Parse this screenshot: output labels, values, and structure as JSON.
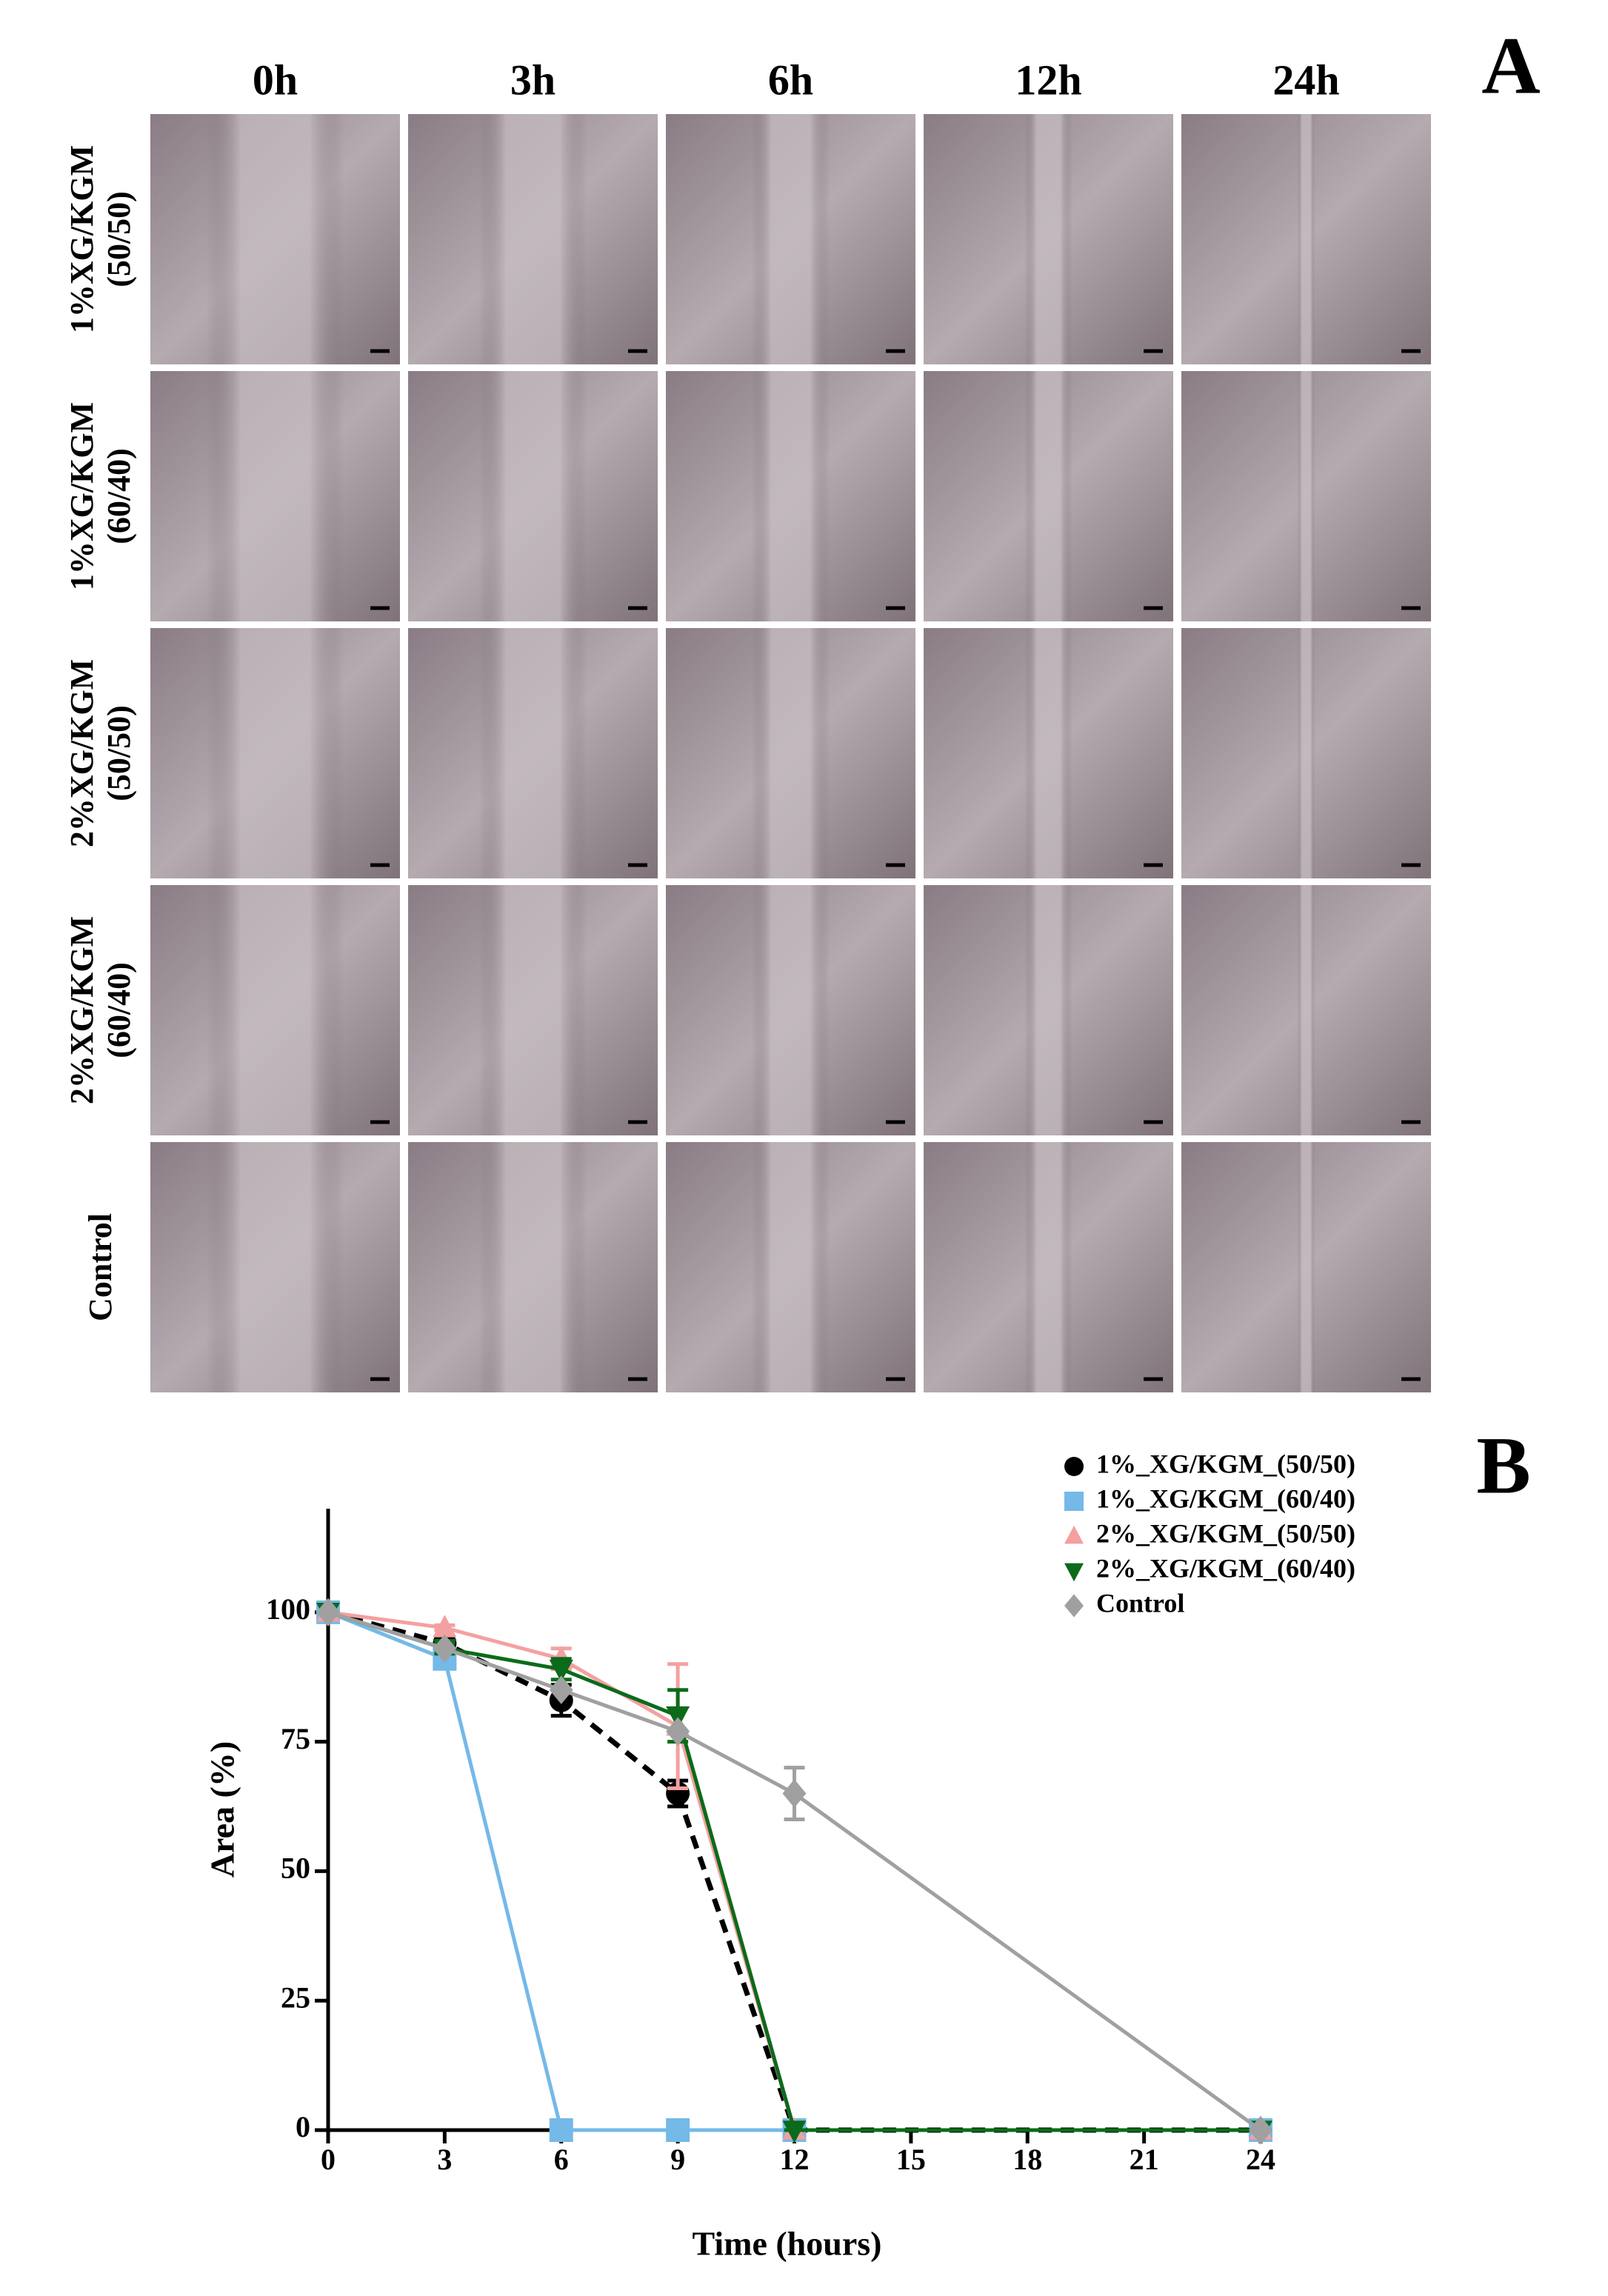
{
  "panel_a": {
    "label": "A",
    "columns": [
      "0h",
      "3h",
      "6h",
      "12h",
      "24h"
    ],
    "rows": [
      [
        "1%XG/KGM",
        "(50/50)"
      ],
      [
        "1%XG/KGM",
        "(60/40)"
      ],
      [
        "2%XG/KGM",
        "(50/50)"
      ],
      [
        "2%XG/KGM",
        "(60/40)"
      ],
      [
        "Control"
      ]
    ]
  },
  "chart_data": {
    "type": "line",
    "panel_label": "B",
    "x_label": "Time (hours)",
    "y_label": "Area (%)",
    "x": [
      0,
      3,
      6,
      9,
      12,
      24
    ],
    "xlim": [
      0,
      24
    ],
    "xticks": [
      0,
      3,
      6,
      9,
      12,
      15,
      18,
      21,
      24
    ],
    "ylim": [
      0,
      120
    ],
    "yticks": [
      0,
      25,
      50,
      75,
      100
    ],
    "series": [
      {
        "name": "1%_XG/KGM_(50/50)",
        "color": "#000000",
        "marker": "circle",
        "dashed": true,
        "values": [
          100,
          94,
          83,
          65,
          0,
          0
        ],
        "errors": [
          0,
          1,
          3,
          2.5,
          0,
          0
        ]
      },
      {
        "name": "1%_XG/KGM_(60/40)",
        "color": "#74b9e8",
        "marker": "square",
        "dashed": false,
        "values": [
          100,
          91,
          0,
          0,
          0,
          0
        ],
        "errors": [
          0,
          1,
          0,
          0,
          0,
          0
        ]
      },
      {
        "name": "2%_XG/KGM_(50/50)",
        "color": "#f4a0a0",
        "marker": "triangle",
        "dashed": false,
        "values": [
          100,
          97,
          91,
          78,
          0,
          0
        ],
        "errors": [
          0,
          0.5,
          2,
          12,
          0,
          0
        ]
      },
      {
        "name": "2%_XG/KGM_(60/40)",
        "color": "#0b6b1a",
        "marker": "triangle-down",
        "dashed": false,
        "values": [
          100,
          93,
          89,
          80,
          0,
          0
        ],
        "errors": [
          0,
          1,
          2,
          5,
          0,
          0
        ]
      },
      {
        "name": "Control",
        "color": "#a0a0a0",
        "marker": "diamond",
        "dashed": false,
        "values": [
          100,
          93,
          85,
          77,
          65,
          0
        ],
        "errors": [
          0,
          0,
          0,
          0,
          5,
          0
        ]
      }
    ]
  }
}
